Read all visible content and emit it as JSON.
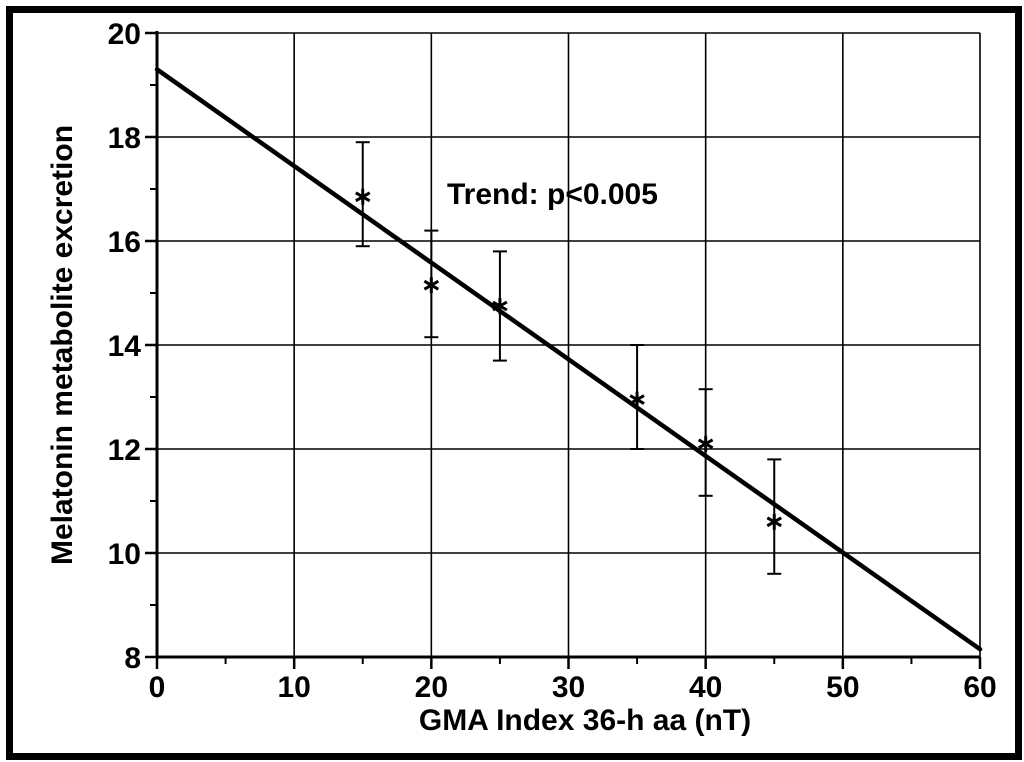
{
  "chart_data": {
    "type": "scatter",
    "title": "",
    "xlabel": "GMA Index  36-h aa  (nT)",
    "ylabel": "Melatonin metabolite excretion",
    "xlim": [
      0,
      60
    ],
    "ylim": [
      8,
      20
    ],
    "x_ticks": [
      0,
      10,
      20,
      30,
      40,
      50,
      60
    ],
    "y_ticks": [
      8,
      10,
      12,
      14,
      16,
      18,
      20
    ],
    "grid": true,
    "annotation": "Trend: p<0.005",
    "points": [
      {
        "x": 15,
        "y": 16.85,
        "err_low": 15.9,
        "err_high": 17.9
      },
      {
        "x": 20,
        "y": 15.15,
        "err_low": 14.15,
        "err_high": 16.2
      },
      {
        "x": 25,
        "y": 14.75,
        "err_low": 13.7,
        "err_high": 15.8
      },
      {
        "x": 35,
        "y": 12.95,
        "err_low": 12.0,
        "err_high": 14.0
      },
      {
        "x": 40,
        "y": 12.1,
        "err_low": 11.1,
        "err_high": 13.15
      },
      {
        "x": 45,
        "y": 10.6,
        "err_low": 9.6,
        "err_high": 11.8
      }
    ],
    "trend_line": {
      "x": [
        0,
        60
      ],
      "y": [
        19.3,
        8.15
      ]
    },
    "colors": {
      "line": "#000000",
      "grid": "#000000",
      "marker": "#000000"
    }
  }
}
